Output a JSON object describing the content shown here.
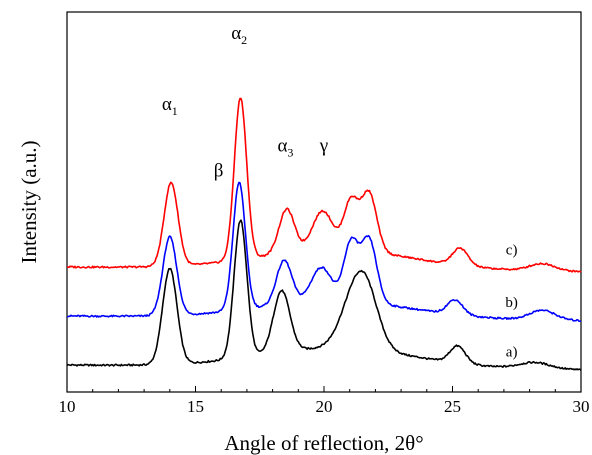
{
  "chart_data": {
    "type": "line",
    "xlabel": "Angle of reflection, 2θ°",
    "ylabel": "Intensity (a.u.)",
    "xlim": [
      10,
      30
    ],
    "xticks": [
      10,
      15,
      20,
      25,
      30
    ],
    "yticks_shown": false,
    "grid": false,
    "legend": "none",
    "series": [
      {
        "name": "a)",
        "color": "#000000",
        "baseline": 0,
        "peaks": [
          {
            "x": 14.0,
            "h": 1.95,
            "w": 0.28
          },
          {
            "x": 16.75,
            "h": 2.8,
            "w": 0.25
          },
          {
            "x": 18.35,
            "h": 1.25,
            "w": 0.32
          },
          {
            "x": 21.0,
            "h": 0.6,
            "w": 0.5
          },
          {
            "x": 21.6,
            "h": 1.25,
            "w": 0.5
          },
          {
            "x": 25.2,
            "h": 0.35,
            "w": 0.3
          },
          {
            "x": 28.2,
            "h": 0.13,
            "w": 0.6
          }
        ],
        "broad": {
          "x": 20.5,
          "h": 0.4,
          "w": 3.0
        }
      },
      {
        "name": "b)",
        "color": "#0000ff",
        "baseline": 1.0,
        "peaks": [
          {
            "x": 14.0,
            "h": 1.6,
            "w": 0.27
          },
          {
            "x": 16.7,
            "h": 2.6,
            "w": 0.24
          },
          {
            "x": 18.45,
            "h": 0.9,
            "w": 0.3
          },
          {
            "x": 19.9,
            "h": 0.7,
            "w": 0.4
          },
          {
            "x": 21.05,
            "h": 1.2,
            "w": 0.28
          },
          {
            "x": 21.75,
            "h": 1.3,
            "w": 0.3
          },
          {
            "x": 25.1,
            "h": 0.3,
            "w": 0.3
          },
          {
            "x": 28.5,
            "h": 0.2,
            "w": 0.5
          }
        ],
        "broad": {
          "x": 20.5,
          "h": 0.35,
          "w": 3.0
        }
      },
      {
        "name": "c)",
        "color": "#ff0000",
        "baseline": 2.0,
        "peaks": [
          {
            "x": 14.05,
            "h": 1.7,
            "w": 0.27
          },
          {
            "x": 16.75,
            "h": 3.3,
            "w": 0.24
          },
          {
            "x": 18.55,
            "h": 0.9,
            "w": 0.3
          },
          {
            "x": 19.95,
            "h": 0.8,
            "w": 0.4
          },
          {
            "x": 21.05,
            "h": 1.0,
            "w": 0.28
          },
          {
            "x": 21.75,
            "h": 1.2,
            "w": 0.3
          },
          {
            "x": 25.3,
            "h": 0.35,
            "w": 0.3
          },
          {
            "x": 28.5,
            "h": 0.15,
            "w": 0.5
          }
        ],
        "broad": {
          "x": 20.5,
          "h": 0.4,
          "w": 3.0
        }
      }
    ],
    "peak_labels": [
      {
        "text": "α",
        "sub": "1",
        "x": 14.0,
        "yval": 5.3
      },
      {
        "text": "α",
        "sub": "2",
        "x": 16.7,
        "yval": 6.75
      },
      {
        "text": "β",
        "sub": "",
        "x": 15.9,
        "yval": 3.95
      },
      {
        "text": "α",
        "sub": "3",
        "x": 18.5,
        "yval": 4.45
      },
      {
        "text": "γ",
        "sub": "",
        "x": 20.0,
        "yval": 4.45
      }
    ],
    "curve_tags": [
      {
        "text": "c)",
        "x": 27.3,
        "yval": 2.35
      },
      {
        "text": "b)",
        "x": 27.3,
        "yval": 1.28
      },
      {
        "text": "a)",
        "x": 27.3,
        "yval": 0.27
      }
    ]
  }
}
